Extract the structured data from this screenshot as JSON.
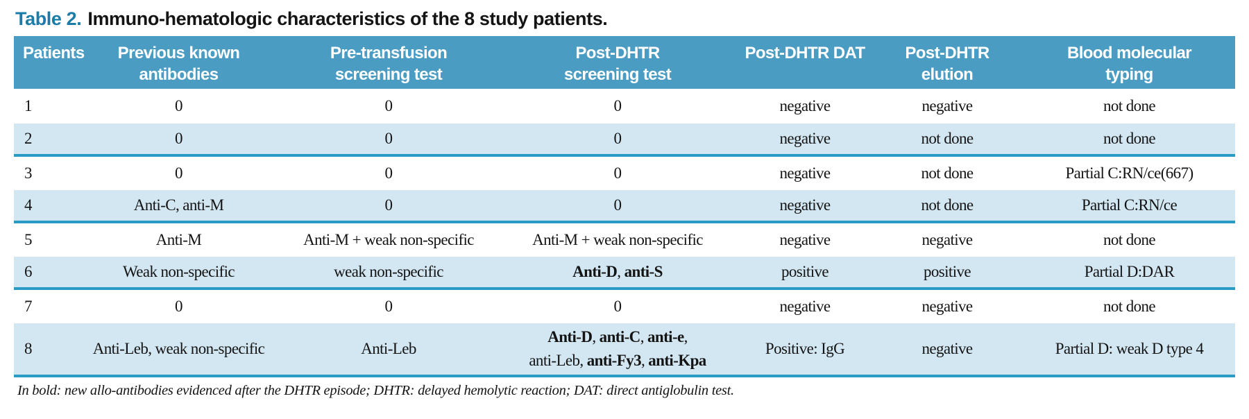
{
  "title": {
    "label": "Table 2.",
    "text": "Immuno-hematologic characteristics of the 8 study patients."
  },
  "colors": {
    "header_bg": "#4a9cc2",
    "row_alt_bg": "#d3e7f2",
    "rule": "#2a9bc2",
    "title_accent": "#1b7da7"
  },
  "table": {
    "columns": [
      {
        "label": "Patients"
      },
      {
        "label": "Previous known\nantibodies"
      },
      {
        "label": "Pre-transfusion\nscreening test"
      },
      {
        "label": "Post-DHTR\nscreening test"
      },
      {
        "label": "Post-DHTR DAT"
      },
      {
        "label": "Post-DHTR\nelution"
      },
      {
        "label": "Blood molecular\ntyping"
      }
    ],
    "rows": [
      {
        "cells": [
          "1",
          "0",
          "0",
          "0",
          "negative",
          "negative",
          "not done"
        ]
      },
      {
        "cells": [
          "2",
          "0",
          "0",
          "0",
          "negative",
          "not done",
          "not done"
        ]
      },
      {
        "cells": [
          "3",
          "0",
          "0",
          "0",
          "negative",
          "not done",
          "Partial C:RN/ce(667)"
        ]
      },
      {
        "cells": [
          "4",
          "Anti-C, anti-M",
          "0",
          "0",
          "negative",
          "not done",
          "Partial C:RN/ce"
        ]
      },
      {
        "cells": [
          "5",
          "Anti-M",
          "Anti-M + weak non-specific",
          "Anti-M + weak non-specific",
          "negative",
          "negative",
          "not done"
        ]
      },
      {
        "cells": [
          "6",
          "Weak non-specific",
          "weak non-specific",
          [
            [
              {
                "text": "Anti-D",
                "bold": true
              },
              {
                "text": ", ",
                "bold": false
              },
              {
                "text": "anti-S",
                "bold": true
              }
            ]
          ],
          "positive",
          "positive",
          "Partial D:DAR"
        ]
      },
      {
        "cells": [
          "7",
          "0",
          "0",
          "0",
          "negative",
          "negative",
          "not done"
        ]
      },
      {
        "cells": [
          "8",
          "Anti-Leb, weak non-specific",
          "Anti-Leb",
          [
            [
              {
                "text": "Anti-D",
                "bold": true
              },
              {
                "text": ", ",
                "bold": false
              },
              {
                "text": "anti-C",
                "bold": true
              },
              {
                "text": ", ",
                "bold": false
              },
              {
                "text": "anti-e",
                "bold": true
              },
              {
                "text": ",",
                "bold": false
              }
            ],
            [
              {
                "text": "anti-Leb, ",
                "bold": false
              },
              {
                "text": "anti-Fy3",
                "bold": true
              },
              {
                "text": ", ",
                "bold": false
              },
              {
                "text": "anti-Kpa",
                "bold": true
              }
            ]
          ],
          "Positive: IgG",
          "negative",
          "Partial D: weak D type 4"
        ]
      }
    ]
  },
  "footnote": {
    "text": "In bold: new allo-antibodies evidenced after the DHTR episode; DHTR: delayed hemolytic reaction; DAT: direct antiglobulin test."
  }
}
